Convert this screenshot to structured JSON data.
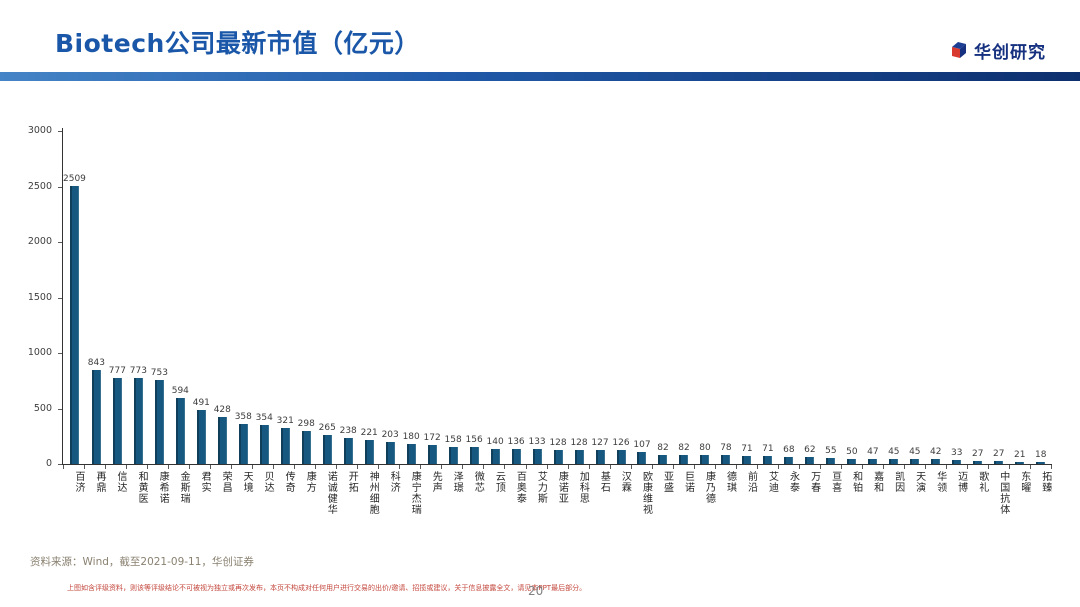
{
  "header": {
    "title": "Biotech公司最新市值（亿元）",
    "logo_text": "华创研究"
  },
  "chart_data": {
    "type": "bar",
    "title": "Biotech公司最新市值（亿元）",
    "categories": [
      "百济",
      "再鼎",
      "信达",
      "和黄医",
      "康希诺",
      "金斯瑞",
      "君实",
      "荣昌",
      "天境",
      "贝达",
      "传奇",
      "康方",
      "诺诚健华",
      "开拓",
      "神州细胞",
      "科济",
      "康宁杰瑞",
      "先声",
      "泽璟",
      "微芯",
      "云顶",
      "百奥泰",
      "艾力斯",
      "康诺亚",
      "加科思",
      "基石",
      "汉霖",
      "欧康维视",
      "亚盛",
      "巨诺",
      "康乃德",
      "德琪",
      "前沿",
      "艾迪",
      "永泰",
      "万春",
      "亘喜",
      "和铂",
      "嘉和",
      "凯因",
      "天演",
      "华领",
      "迈博",
      "歌礼",
      "中国抗体",
      "东曜",
      "拓臻"
    ],
    "values": [
      2509,
      843,
      777,
      773,
      753,
      594,
      491,
      428,
      358,
      354,
      321,
      298,
      265,
      238,
      221,
      203,
      180,
      172,
      158,
      156,
      140,
      136,
      133,
      128,
      128,
      127,
      126,
      107,
      82,
      82,
      80,
      78,
      71,
      71,
      68,
      62,
      55,
      50,
      47,
      45,
      45,
      42,
      33,
      27,
      27,
      21,
      18
    ],
    "xlabel": "",
    "ylabel": "",
    "ylim": [
      0,
      3000
    ],
    "yticks": [
      0,
      500,
      1000,
      1500,
      2000,
      2500,
      3000
    ],
    "grid": false,
    "legend": "none",
    "value_labels": true,
    "bar_color": "#16587f",
    "accent_color": "#1b57a8"
  },
  "footer": {
    "source": "资料来源：Wind，截至2021-09-11，华创证券",
    "disclaimer": "上图如含评级资料，则该等评级结论不可被视为独立或再次发布，本页不构成对任何用户进行交易的出价/邀请、招揽或建议，关于信息披露全文，请见本PPT最后部分。",
    "page_number": "20"
  }
}
